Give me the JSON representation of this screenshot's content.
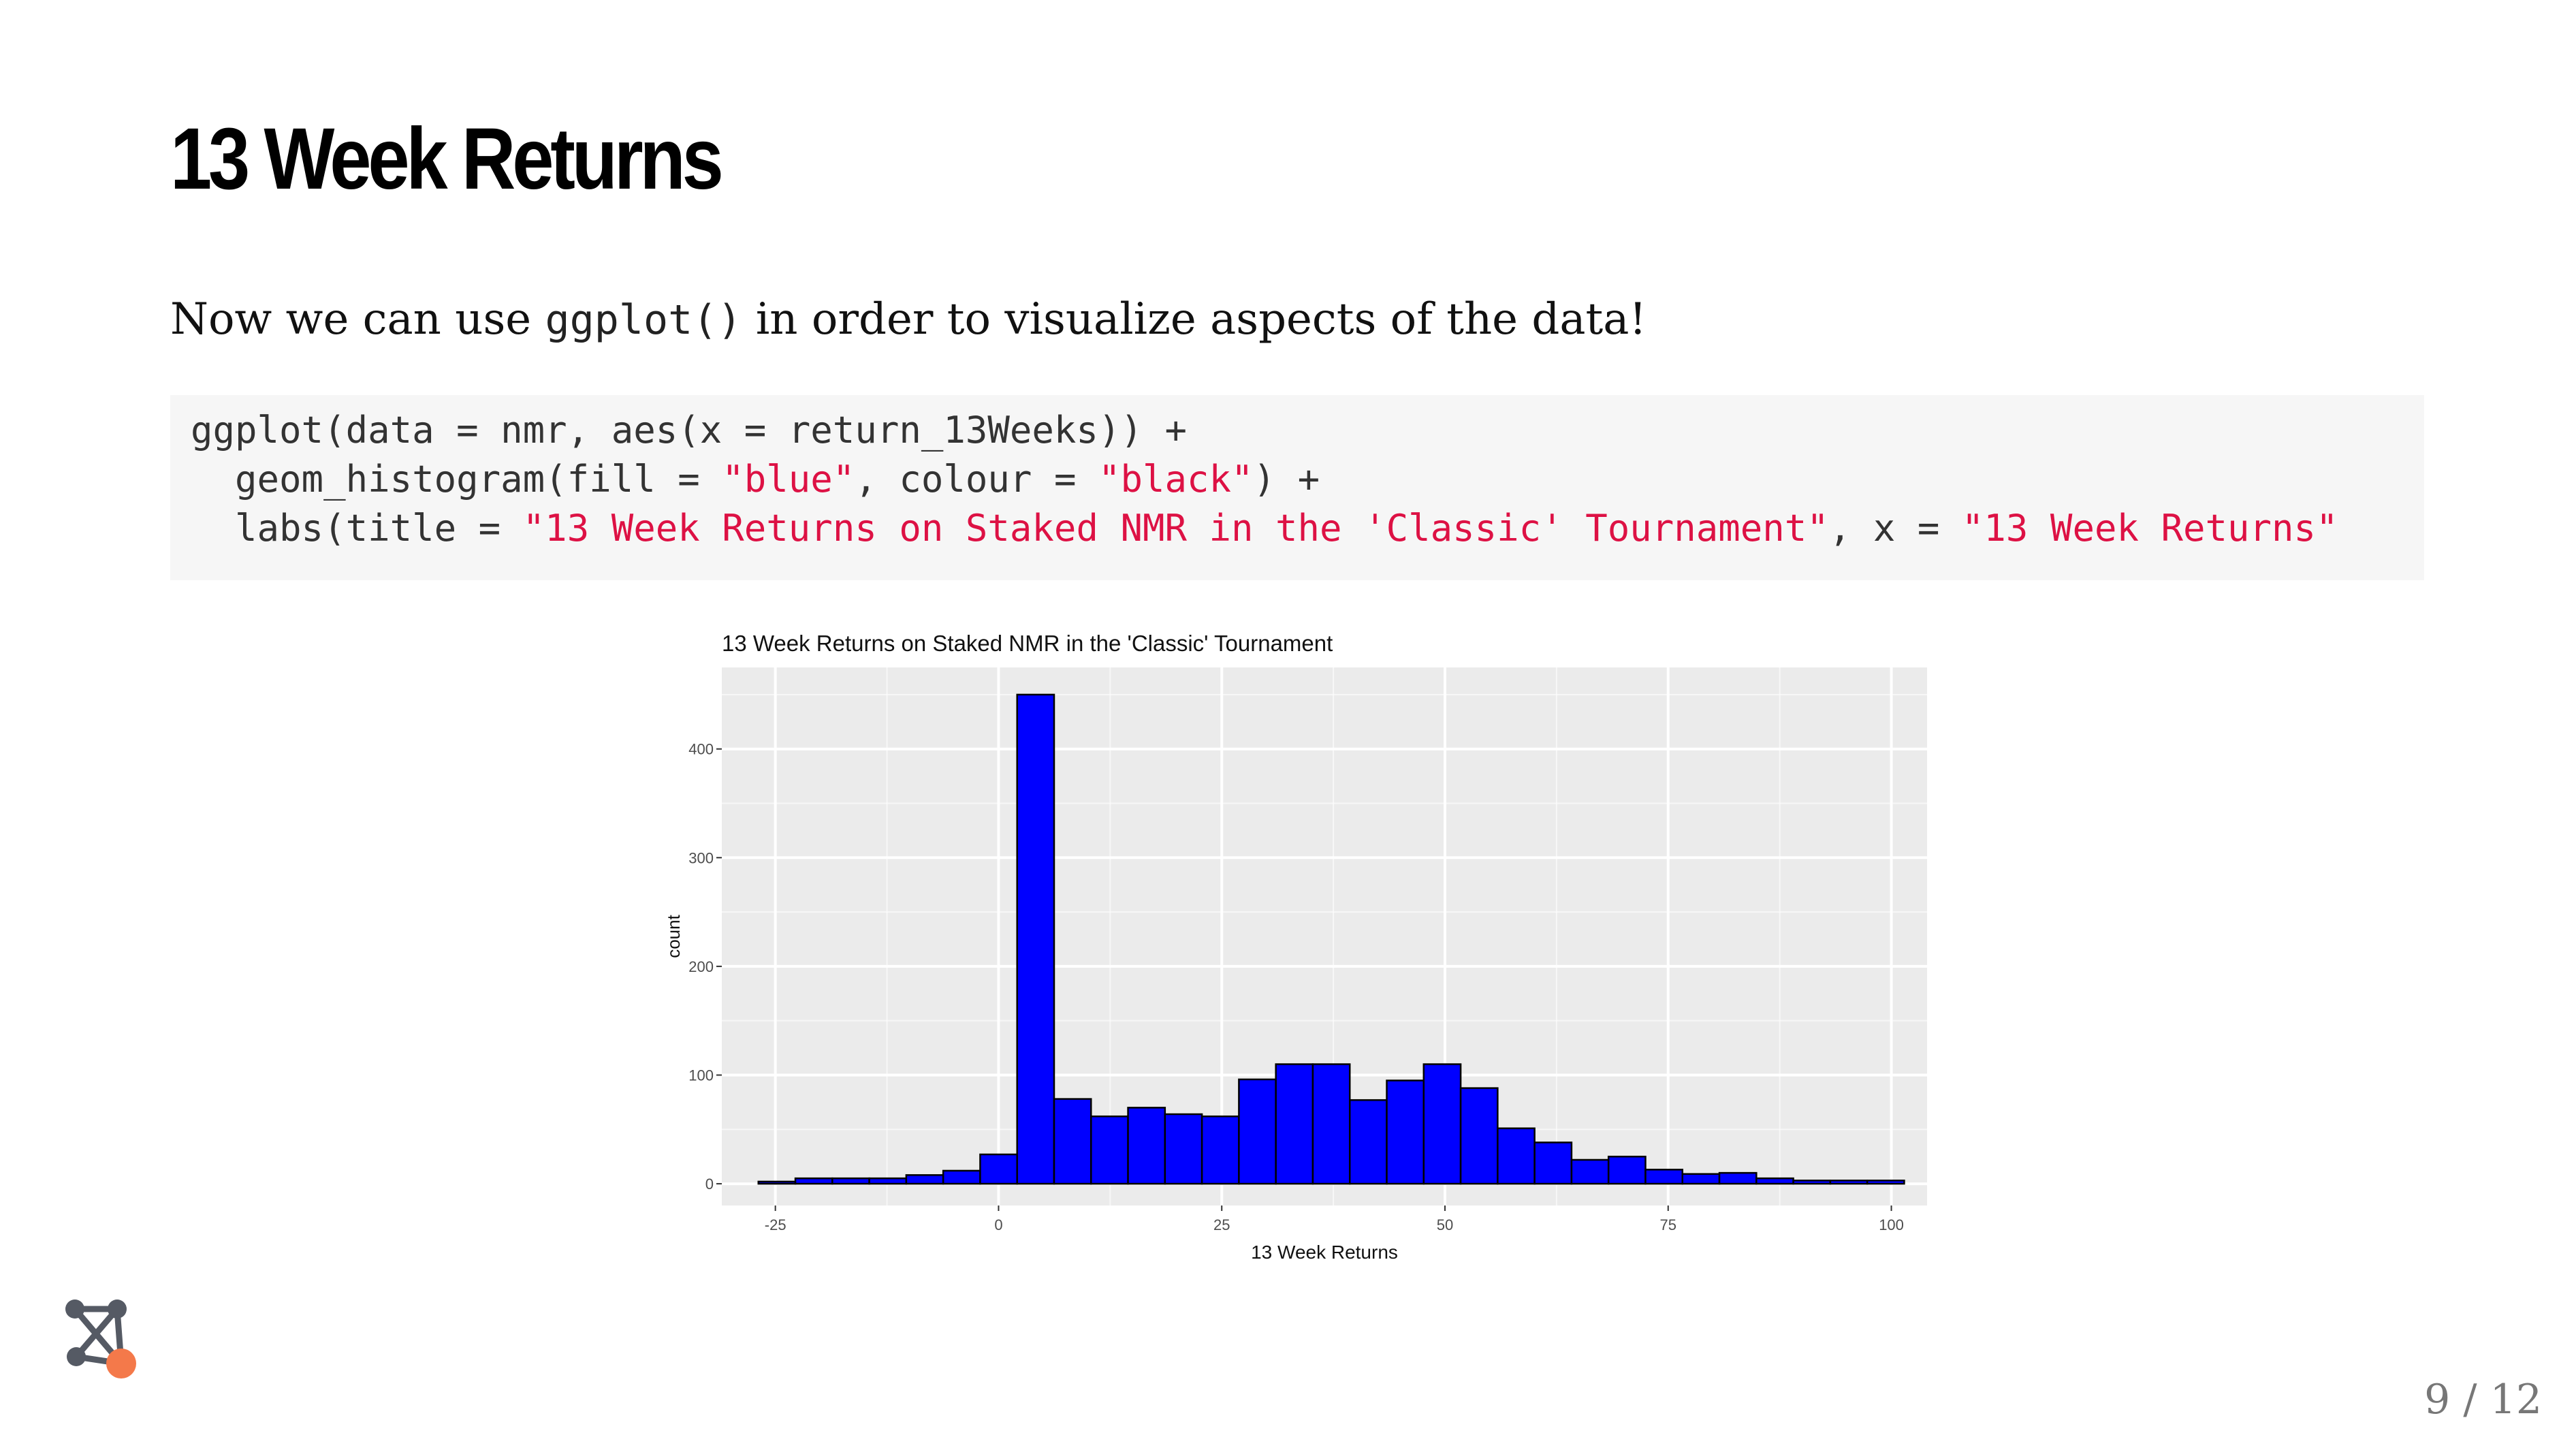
{
  "slide": {
    "title": "13 Week Returns",
    "intro_before": "Now we can use ",
    "intro_code": "ggplot()",
    "intro_after": " in order to visualize aspects of the data!",
    "code": {
      "line1": "ggplot(data = nmr, aes(x = return_13Weeks)) +",
      "line2_a": "  geom_histogram(fill = ",
      "line2_b": "\"blue\"",
      "line2_c": ", colour = ",
      "line2_d": "\"black\"",
      "line2_e": ") +",
      "line3_a": "  labs(title = ",
      "line3_b": "\"13 Week Returns on Staked NMR in the 'Classic' Tournament\"",
      "line3_c": ", x = ",
      "line3_d": "\"13 Week Returns\""
    },
    "pager": "9 / 12",
    "colors": {
      "bar_fill": "#0000ff",
      "bar_stroke": "#000000",
      "panel_bg": "#ebebeb",
      "grid": "#ffffff",
      "logo_dark": "#555a64",
      "logo_accent": "#f4794a"
    },
    "logo_icon": "network-logo-icon"
  },
  "chart_data": {
    "type": "bar",
    "title": "13 Week Returns on Staked NMR in the 'Classic' Tournament",
    "xlabel": "13 Week Returns",
    "ylabel": "count",
    "xlim": [
      -31,
      104
    ],
    "ylim": [
      -20,
      475
    ],
    "x_ticks": [
      -25,
      0,
      25,
      50,
      75,
      100
    ],
    "y_ticks": [
      0,
      100,
      200,
      300,
      400
    ],
    "grid": true,
    "bin_width": 4.14,
    "bin_start": -26.9,
    "values": [
      2,
      5,
      5,
      5,
      8,
      12,
      27,
      450,
      78,
      62,
      70,
      64,
      62,
      96,
      110,
      110,
      77,
      95,
      110,
      88,
      51,
      38,
      22,
      25,
      13,
      9,
      10,
      5,
      3,
      3,
      3
    ]
  }
}
